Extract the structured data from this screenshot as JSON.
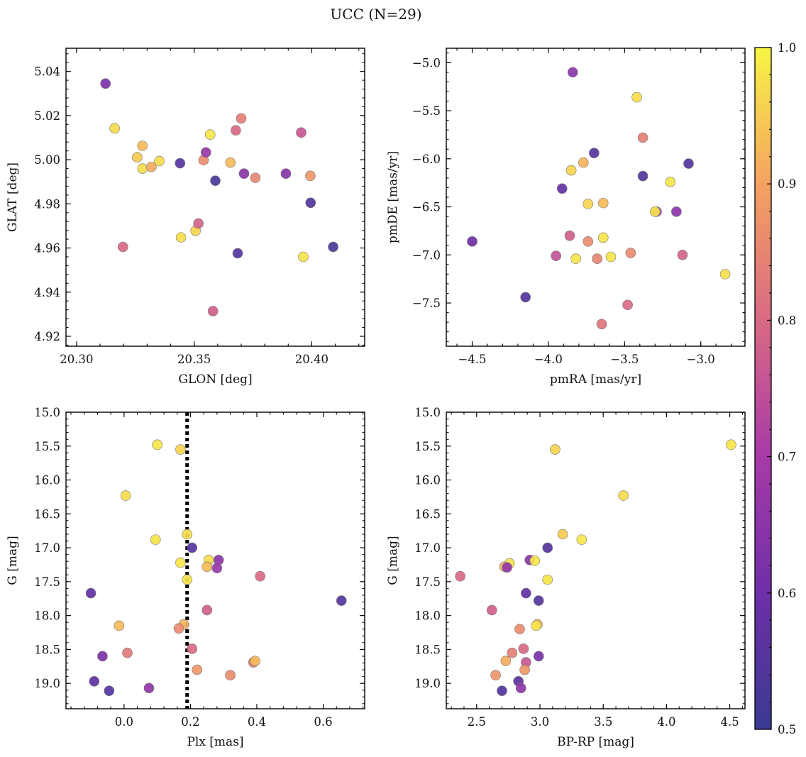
{
  "title": "UCC (N=29)",
  "colorbar": {
    "min": 0.5,
    "max": 1.0,
    "ticks": [
      "0.5",
      "0.6",
      "0.7",
      "0.8",
      "0.9",
      "1.0"
    ],
    "colormap": "plasma"
  },
  "chart_data": [
    {
      "type": "scatter",
      "xlabel": "GLON [deg]",
      "ylabel": "GLAT [deg]",
      "xlim": [
        20.2955,
        20.4225
      ],
      "ylim": [
        4.9155,
        5.0505
      ],
      "y_inverted": false,
      "xticks": [
        "20.30",
        "20.35",
        "20.40"
      ],
      "yticks": [
        "4.92",
        "4.94",
        "4.96",
        "4.98",
        "5.00",
        "5.02",
        "5.04"
      ],
      "vline": null,
      "points": [
        {
          "x": 20.3123,
          "y": 5.0345,
          "p": 0.62
        },
        {
          "x": 20.3162,
          "y": 5.0142,
          "p": 0.97
        },
        {
          "x": 20.328,
          "y": 5.0063,
          "p": 0.93
        },
        {
          "x": 20.3258,
          "y": 5.0011,
          "p": 0.95
        },
        {
          "x": 20.328,
          "y": 4.996,
          "p": 0.97
        },
        {
          "x": 20.3318,
          "y": 4.9967,
          "p": 0.91
        },
        {
          "x": 20.3352,
          "y": 4.9994,
          "p": 0.97
        },
        {
          "x": 20.344,
          "y": 4.9984,
          "p": 0.55
        },
        {
          "x": 20.354,
          "y": 4.9998,
          "p": 0.86
        },
        {
          "x": 20.355,
          "y": 5.0033,
          "p": 0.67
        },
        {
          "x": 20.3568,
          "y": 5.0114,
          "p": 0.98
        },
        {
          "x": 20.359,
          "y": 4.9905,
          "p": 0.53
        },
        {
          "x": 20.3654,
          "y": 4.9987,
          "p": 0.93
        },
        {
          "x": 20.3677,
          "y": 5.0133,
          "p": 0.8
        },
        {
          "x": 20.37,
          "y": 5.0187,
          "p": 0.84
        },
        {
          "x": 20.3712,
          "y": 4.9937,
          "p": 0.65
        },
        {
          "x": 20.376,
          "y": 4.9918,
          "p": 0.85
        },
        {
          "x": 20.389,
          "y": 4.9937,
          "p": 0.64
        },
        {
          "x": 20.3955,
          "y": 5.0123,
          "p": 0.76
        },
        {
          "x": 20.3994,
          "y": 4.9927,
          "p": 0.88
        },
        {
          "x": 20.3995,
          "y": 4.9805,
          "p": 0.55
        },
        {
          "x": 20.3197,
          "y": 4.9605,
          "p": 0.8
        },
        {
          "x": 20.3444,
          "y": 4.9648,
          "p": 0.97
        },
        {
          "x": 20.3506,
          "y": 4.9678,
          "p": 0.96
        },
        {
          "x": 20.3518,
          "y": 4.9711,
          "p": 0.79
        },
        {
          "x": 20.3685,
          "y": 4.9576,
          "p": 0.55
        },
        {
          "x": 20.3964,
          "y": 4.956,
          "p": 0.98
        },
        {
          "x": 20.4091,
          "y": 4.9605,
          "p": 0.53
        },
        {
          "x": 20.358,
          "y": 4.9314,
          "p": 0.78
        }
      ]
    },
    {
      "type": "scatter",
      "xlabel": "pmRA [mas/yr]",
      "ylabel": "pmDE [mas/yr]",
      "xlim": [
        -4.67,
        -2.71
      ],
      "ylim": [
        -7.95,
        -4.85
      ],
      "y_inverted": false,
      "xticks": [
        "−4.5",
        "−4.0",
        "−3.5",
        "−3.0"
      ],
      "yticks": [
        "−7.5",
        "−7.0",
        "−6.5",
        "−6.0",
        "−5.5",
        "−5.0"
      ],
      "vline": null,
      "points": [
        {
          "x": -3.84,
          "y": -5.1,
          "p": 0.65
        },
        {
          "x": -3.42,
          "y": -5.36,
          "p": 0.97
        },
        {
          "x": -3.38,
          "y": -5.78,
          "p": 0.84
        },
        {
          "x": -3.7,
          "y": -5.94,
          "p": 0.55
        },
        {
          "x": -3.77,
          "y": -6.04,
          "p": 0.92
        },
        {
          "x": -3.85,
          "y": -6.12,
          "p": 0.96
        },
        {
          "x": -3.08,
          "y": -6.05,
          "p": 0.55
        },
        {
          "x": -3.38,
          "y": -6.18,
          "p": 0.55
        },
        {
          "x": -3.2,
          "y": -6.24,
          "p": 0.98
        },
        {
          "x": -3.91,
          "y": -6.31,
          "p": 0.58
        },
        {
          "x": -3.74,
          "y": -6.47,
          "p": 0.96
        },
        {
          "x": -3.64,
          "y": -6.46,
          "p": 0.93
        },
        {
          "x": -3.29,
          "y": -6.55,
          "p": 0.68
        },
        {
          "x": -3.3,
          "y": -6.55,
          "p": 0.98
        },
        {
          "x": -3.16,
          "y": -6.55,
          "p": 0.65
        },
        {
          "x": -4.5,
          "y": -6.86,
          "p": 0.6
        },
        {
          "x": -3.86,
          "y": -6.8,
          "p": 0.78
        },
        {
          "x": -3.74,
          "y": -6.86,
          "p": 0.86
        },
        {
          "x": -3.64,
          "y": -6.82,
          "p": 0.98
        },
        {
          "x": -3.95,
          "y": -7.01,
          "p": 0.75
        },
        {
          "x": -3.82,
          "y": -7.04,
          "p": 0.98
        },
        {
          "x": -3.68,
          "y": -7.04,
          "p": 0.85
        },
        {
          "x": -3.59,
          "y": -7.02,
          "p": 0.98
        },
        {
          "x": -3.46,
          "y": -6.98,
          "p": 0.86
        },
        {
          "x": -3.12,
          "y": -7.0,
          "p": 0.79
        },
        {
          "x": -2.84,
          "y": -7.2,
          "p": 0.97
        },
        {
          "x": -4.15,
          "y": -7.44,
          "p": 0.55
        },
        {
          "x": -3.48,
          "y": -7.52,
          "p": 0.8
        },
        {
          "x": -3.65,
          "y": -7.72,
          "p": 0.82
        }
      ]
    },
    {
      "type": "scatter",
      "xlabel": "Plx [mas]",
      "ylabel": "G [mag]",
      "xlim": [
        -0.175,
        0.725
      ],
      "ylim": [
        19.375,
        15.0
      ],
      "y_inverted": true,
      "xticks": [
        "0.0",
        "0.2",
        "0.4",
        "0.6"
      ],
      "yticks": [
        "15.0",
        "15.5",
        "16.0",
        "16.5",
        "17.0",
        "17.5",
        "18.0",
        "18.5",
        "19.0"
      ],
      "vline": 0.19,
      "points": [
        {
          "x": 0.1,
          "y": 15.48,
          "p": 0.98
        },
        {
          "x": 0.17,
          "y": 15.55,
          "p": 0.96
        },
        {
          "x": 0.005,
          "y": 16.23,
          "p": 0.97
        },
        {
          "x": 0.19,
          "y": 16.8,
          "p": 0.97
        },
        {
          "x": 0.095,
          "y": 16.88,
          "p": 0.98
        },
        {
          "x": 0.205,
          "y": 17.0,
          "p": 0.55
        },
        {
          "x": 0.255,
          "y": 17.18,
          "p": 0.97
        },
        {
          "x": 0.285,
          "y": 17.18,
          "p": 0.65
        },
        {
          "x": 0.17,
          "y": 17.22,
          "p": 0.98
        },
        {
          "x": 0.25,
          "y": 17.28,
          "p": 0.93
        },
        {
          "x": 0.28,
          "y": 17.3,
          "p": 0.67
        },
        {
          "x": 0.41,
          "y": 17.42,
          "p": 0.8
        },
        {
          "x": 0.19,
          "y": 17.47,
          "p": 0.98
        },
        {
          "x": -0.1,
          "y": 17.67,
          "p": 0.58
        },
        {
          "x": 0.655,
          "y": 17.78,
          "p": 0.55
        },
        {
          "x": 0.25,
          "y": 17.92,
          "p": 0.78
        },
        {
          "x": -0.015,
          "y": 18.15,
          "p": 0.93
        },
        {
          "x": 0.18,
          "y": 18.13,
          "p": 0.92
        },
        {
          "x": 0.165,
          "y": 18.19,
          "p": 0.86
        },
        {
          "x": 0.205,
          "y": 18.49,
          "p": 0.8
        },
        {
          "x": 0.01,
          "y": 18.55,
          "p": 0.83
        },
        {
          "x": -0.065,
          "y": 18.6,
          "p": 0.62
        },
        {
          "x": 0.39,
          "y": 18.69,
          "p": 0.82
        },
        {
          "x": 0.395,
          "y": 18.67,
          "p": 0.93
        },
        {
          "x": 0.22,
          "y": 18.8,
          "p": 0.88
        },
        {
          "x": 0.32,
          "y": 18.88,
          "p": 0.86
        },
        {
          "x": -0.09,
          "y": 18.97,
          "p": 0.57
        },
        {
          "x": 0.075,
          "y": 19.07,
          "p": 0.66
        },
        {
          "x": -0.045,
          "y": 19.11,
          "p": 0.55
        }
      ]
    },
    {
      "type": "scatter",
      "xlabel": "BP-RP [mag]",
      "ylabel": "G [mag]",
      "xlim": [
        2.26,
        4.62
      ],
      "ylim": [
        19.375,
        15.0
      ],
      "y_inverted": true,
      "xticks": [
        "2.5",
        "3.0",
        "3.5",
        "4.0",
        "4.5"
      ],
      "yticks": [
        "15.0",
        "15.5",
        "16.0",
        "16.5",
        "17.0",
        "17.5",
        "18.0",
        "18.5",
        "19.0"
      ],
      "vline": null,
      "points": [
        {
          "x": 4.51,
          "y": 15.48,
          "p": 0.98
        },
        {
          "x": 3.12,
          "y": 15.55,
          "p": 0.96
        },
        {
          "x": 3.66,
          "y": 16.23,
          "p": 0.97
        },
        {
          "x": 3.18,
          "y": 16.8,
          "p": 0.95
        },
        {
          "x": 3.33,
          "y": 16.88,
          "p": 0.98
        },
        {
          "x": 3.06,
          "y": 17.0,
          "p": 0.55
        },
        {
          "x": 2.92,
          "y": 17.18,
          "p": 0.65
        },
        {
          "x": 2.96,
          "y": 17.19,
          "p": 0.98
        },
        {
          "x": 2.76,
          "y": 17.23,
          "p": 0.98
        },
        {
          "x": 2.72,
          "y": 17.28,
          "p": 0.92
        },
        {
          "x": 2.74,
          "y": 17.29,
          "p": 0.66
        },
        {
          "x": 2.37,
          "y": 17.42,
          "p": 0.8
        },
        {
          "x": 3.06,
          "y": 17.47,
          "p": 0.98
        },
        {
          "x": 2.89,
          "y": 17.67,
          "p": 0.58
        },
        {
          "x": 2.99,
          "y": 17.78,
          "p": 0.55
        },
        {
          "x": 2.62,
          "y": 17.92,
          "p": 0.78
        },
        {
          "x": 2.98,
          "y": 18.13,
          "p": 0.92
        },
        {
          "x": 2.97,
          "y": 18.15,
          "p": 0.98
        },
        {
          "x": 2.84,
          "y": 18.2,
          "p": 0.86
        },
        {
          "x": 2.87,
          "y": 18.49,
          "p": 0.8
        },
        {
          "x": 2.78,
          "y": 18.55,
          "p": 0.84
        },
        {
          "x": 2.99,
          "y": 18.6,
          "p": 0.62
        },
        {
          "x": 2.73,
          "y": 18.67,
          "p": 0.91
        },
        {
          "x": 2.89,
          "y": 18.69,
          "p": 0.76
        },
        {
          "x": 2.88,
          "y": 18.8,
          "p": 0.88
        },
        {
          "x": 2.65,
          "y": 18.88,
          "p": 0.88
        },
        {
          "x": 2.83,
          "y": 18.97,
          "p": 0.57
        },
        {
          "x": 2.85,
          "y": 19.07,
          "p": 0.66
        },
        {
          "x": 2.7,
          "y": 19.11,
          "p": 0.55
        }
      ]
    }
  ]
}
